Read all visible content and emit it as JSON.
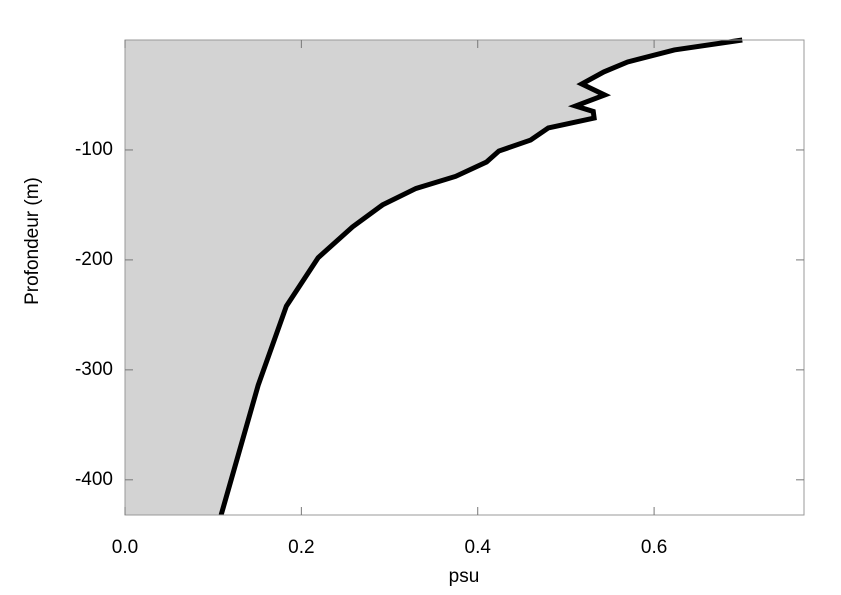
{
  "chart_data": {
    "type": "area_profile",
    "xlabel": "psu",
    "ylabel": "Profondeur (m)",
    "x": [
      0.7,
      0.623,
      0.57,
      0.543,
      0.518,
      0.544,
      0.511,
      0.531,
      0.532,
      0.48,
      0.46,
      0.424,
      0.41,
      0.375,
      0.33,
      0.292,
      0.258,
      0.219,
      0.183,
      0.151,
      0.109
    ],
    "values": [
      0,
      -9,
      -20,
      -29,
      -40,
      -50,
      -60,
      -65,
      -71,
      -80,
      -91,
      -101,
      -111,
      -124,
      -135,
      -150,
      -170,
      -198,
      -242,
      -314,
      -432
    ],
    "color": "#000000",
    "fill_color": "#d3d3d3",
    "xlim": [
      0,
      0.77
    ],
    "ylim": [
      -432,
      0
    ],
    "xticks": [
      {
        "value": 0,
        "label": "0.0"
      },
      0.2,
      0.4,
      0.6
    ],
    "yticks": [
      -100,
      -200,
      -300,
      -400
    ]
  }
}
